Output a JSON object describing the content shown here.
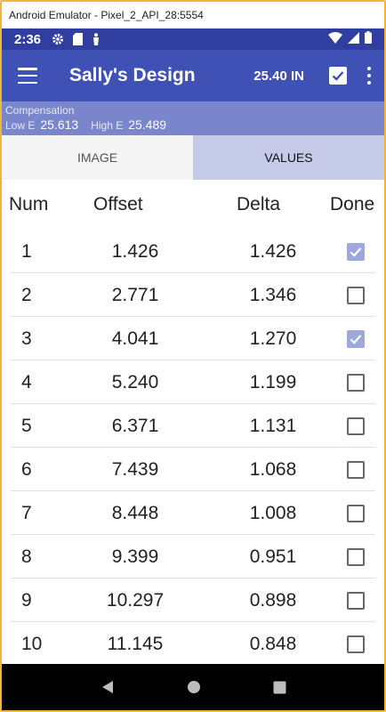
{
  "window": {
    "title": "Android Emulator - Pixel_2_API_28:5554"
  },
  "status_bar": {
    "time": "2:36"
  },
  "app_bar": {
    "title": "Sally's Design",
    "measurement": "25.40 IN"
  },
  "compensation": {
    "label": "Compensation",
    "low_label": "Low E",
    "low_value": "25.613",
    "high_label": "High E",
    "high_value": "25.489"
  },
  "tabs": [
    {
      "label": "IMAGE",
      "active": false
    },
    {
      "label": "VALUES",
      "active": true
    }
  ],
  "table": {
    "headers": {
      "num": "Num",
      "offset": "Offset",
      "delta": "Delta",
      "done": "Done"
    },
    "rows": [
      {
        "num": "1",
        "offset": "1.426",
        "delta": "1.426",
        "done": true
      },
      {
        "num": "2",
        "offset": "2.771",
        "delta": "1.346",
        "done": false
      },
      {
        "num": "3",
        "offset": "4.041",
        "delta": "1.270",
        "done": true
      },
      {
        "num": "4",
        "offset": "5.240",
        "delta": "1.199",
        "done": false
      },
      {
        "num": "5",
        "offset": "6.371",
        "delta": "1.131",
        "done": false
      },
      {
        "num": "6",
        "offset": "7.439",
        "delta": "1.068",
        "done": false
      },
      {
        "num": "7",
        "offset": "8.448",
        "delta": "1.008",
        "done": false
      },
      {
        "num": "8",
        "offset": "9.399",
        "delta": "0.951",
        "done": false
      },
      {
        "num": "9",
        "offset": "10.297",
        "delta": "0.898",
        "done": false
      },
      {
        "num": "10",
        "offset": "11.145",
        "delta": "0.848",
        "done": false
      }
    ]
  },
  "colors": {
    "primary": "#3f51b5",
    "primary_dark": "#303f9f",
    "compensation_bg": "#7986cb",
    "active_tab": "#c5cae9",
    "checked": "#9fa8da"
  }
}
